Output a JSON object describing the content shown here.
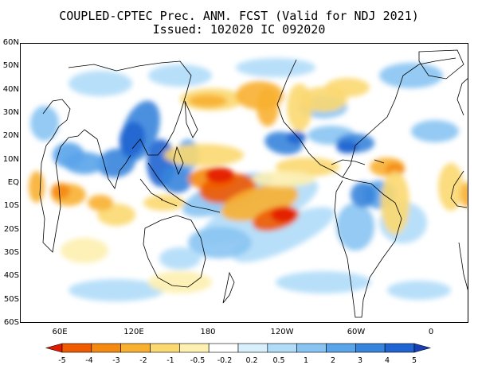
{
  "title": "COUPLED-CPTEC Prec. ANM. FCST  (Valid for NDJ 2021)",
  "subtitle": "Issued:  102020 IC 092020",
  "lat_labels": [
    "60N",
    "50N",
    "40N",
    "30N",
    "20N",
    "10N",
    "EQ",
    "10S",
    "20S",
    "30S",
    "40S",
    "50S",
    "60S"
  ],
  "lon_labels": [
    "60E",
    "120E",
    "180",
    "120W",
    "60W",
    "0"
  ],
  "colorbar": {
    "labels": [
      "-5",
      "-4",
      "-3",
      "-2",
      "-1",
      "-0.5",
      "-0.2",
      "0.2",
      "0.5",
      "1",
      "2",
      "3",
      "4",
      "5"
    ],
    "colors": [
      "#e31a00",
      "#f05a00",
      "#f58a10",
      "#f8b030",
      "#fbd870",
      "#fdf0b0",
      "#ffffff",
      "#d8f0fc",
      "#b0dcf8",
      "#88c4f2",
      "#5aa4ea",
      "#3684dc",
      "#1f64d0",
      "#1540b8"
    ]
  }
}
